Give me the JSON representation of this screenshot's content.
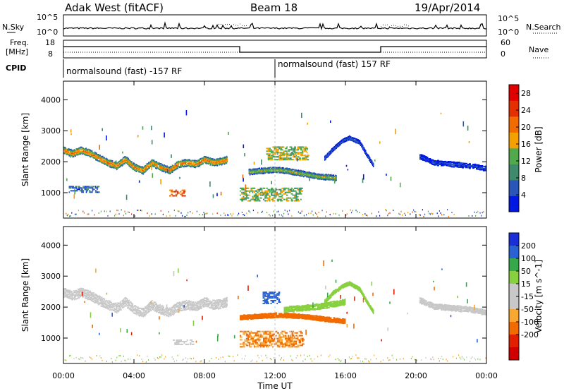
{
  "header": {
    "station": "Adak West (fitACF)",
    "beam": "Beam 18",
    "date": "19/Apr/2014"
  },
  "noise_panel": {
    "left_label": "N.Sky",
    "right_label": "N.Search",
    "left_ticks": [
      "10^5",
      "10^0"
    ],
    "right_ticks": [
      "10^5",
      "10^0"
    ]
  },
  "freq_panel": {
    "left_label_1": "Freq.",
    "left_label_2": "[MHz]",
    "left_ticks": [
      "18",
      "8"
    ],
    "right_label": "Nave",
    "right_ticks": [
      "60",
      "0"
    ],
    "cpid_label": "CPID",
    "cpid_segments": [
      "normalsound (fast) -157 RF",
      "normalsound (fast) 157 RF"
    ]
  },
  "colors": {
    "power_scale": [
      "#0018e0",
      "#2a56b8",
      "#3f8a6c",
      "#52a84c",
      "#f4a000",
      "#f26b00",
      "#e43000",
      "#e00000"
    ],
    "velocity_scale": [
      "#1a2fd8",
      "#2a62d4",
      "#36a84a",
      "#88d040",
      "#c8c8c8",
      "#c8c8c8",
      "#f8a830",
      "#f26b00",
      "#e02000",
      "#d00000"
    ]
  },
  "chart_data": [
    {
      "type": "heatmap",
      "title": "Power",
      "xlabel": "Time UT",
      "ylabel": "Slant Range [km]",
      "colorbar_label": "Power [dB]",
      "x_ticks": [
        "00:00",
        "04:00",
        "08:00",
        "12:00",
        "16:00",
        "20:00",
        "00:00"
      ],
      "y_ticks": [
        1000,
        2000,
        3000,
        4000
      ],
      "xlim_hours": [
        0,
        24
      ],
      "ylim_km": [
        180,
        4600
      ],
      "colorbar_ticks": [
        4,
        8,
        12,
        16,
        20,
        24,
        28
      ],
      "colorbar_range": [
        0,
        30
      ],
      "echo_bands": [
        {
          "t": [
            0.0,
            0.5,
            1.0,
            1.5,
            2.0,
            2.5,
            3.0,
            3.5,
            4.0,
            4.5,
            5.0,
            5.5,
            6.0,
            6.5,
            7.0,
            7.5,
            8.0,
            8.5,
            9.0,
            9.3
          ],
          "r": [
            2350,
            2250,
            2350,
            2250,
            2100,
            1950,
            1850,
            2050,
            1800,
            1700,
            1950,
            1800,
            1700,
            1900,
            1950,
            1900,
            2050,
            1950,
            2000,
            2050
          ],
          "width_km": 230,
          "power_db": 22
        },
        {
          "t": [
            10.5,
            11.0,
            11.5,
            12.0,
            12.5,
            13.0,
            13.5,
            14.0,
            14.5,
            15.0,
            15.5
          ],
          "r": [
            1650,
            1680,
            1700,
            1720,
            1700,
            1650,
            1600,
            1550,
            1500,
            1480,
            1450
          ],
          "width_km": 180,
          "power_db": 16
        },
        {
          "t": [
            14.8,
            15.3,
            15.8,
            16.2,
            16.8,
            17.2,
            17.6
          ],
          "r": [
            2100,
            2400,
            2650,
            2750,
            2600,
            2200,
            1850
          ],
          "width_km": 120,
          "power_db": 6
        },
        {
          "t": [
            20.2,
            21.0,
            22.0,
            23.0,
            24.0
          ],
          "r": [
            2150,
            1950,
            1900,
            1850,
            1750
          ],
          "width_km": 160,
          "power_db": 5
        }
      ],
      "echo_patches": [
        {
          "t": [
            6.0,
            6.8
          ],
          "r": [
            880,
            1080
          ],
          "power_db": 22
        },
        {
          "t": [
            10.0,
            13.5
          ],
          "r": [
            720,
            1150
          ],
          "power_db": 13
        },
        {
          "t": [
            11.5,
            13.8
          ],
          "r": [
            2050,
            2500
          ],
          "power_db": 14
        },
        {
          "t": [
            0.3,
            2.0
          ],
          "r": [
            1000,
            1200
          ],
          "power_db": 6
        }
      ]
    },
    {
      "type": "heatmap",
      "title": "Velocity",
      "xlabel": "Time UT",
      "ylabel": "Slant Range [km]",
      "colorbar_label": "Velocity [m s^-1]",
      "x_ticks": [
        "00:00",
        "04:00",
        "08:00",
        "12:00",
        "16:00",
        "20:00",
        "00:00"
      ],
      "y_ticks": [
        1000,
        2000,
        3000,
        4000
      ],
      "xlim_hours": [
        0,
        24
      ],
      "ylim_km": [
        180,
        4600
      ],
      "colorbar_ticks": [
        200,
        100,
        50,
        15,
        -15,
        -50,
        -100,
        -200
      ],
      "echo_bands": [
        {
          "t": [
            0.0,
            0.5,
            1.0,
            1.5,
            2.0,
            2.5,
            3.0,
            3.5,
            4.0,
            4.5,
            5.0,
            5.5,
            6.0,
            6.5,
            7.0,
            7.5,
            8.0,
            8.5,
            9.0,
            9.3
          ],
          "r": [
            2450,
            2350,
            2450,
            2350,
            2200,
            2050,
            1950,
            2150,
            1900,
            1800,
            2050,
            1900,
            1800,
            2000,
            2050,
            2000,
            2150,
            2050,
            2100,
            2150
          ],
          "width_km": 300,
          "velocity": 0
        },
        {
          "t": [
            10.0,
            11.0,
            12.0,
            13.0,
            14.0,
            15.0,
            16.0
          ],
          "r": [
            1650,
            1680,
            1720,
            1700,
            1650,
            1580,
            1520
          ],
          "width_km": 150,
          "velocity": -90
        },
        {
          "t": [
            12.5,
            13.5,
            14.5,
            15.5,
            16.0
          ],
          "r": [
            1900,
            1950,
            2000,
            2100,
            2150
          ],
          "width_km": 180,
          "velocity": 40
        },
        {
          "t": [
            14.8,
            15.3,
            15.8,
            16.2,
            16.8,
            17.2,
            17.6
          ],
          "r": [
            2150,
            2450,
            2650,
            2750,
            2550,
            2150,
            1800
          ],
          "width_km": 120,
          "velocity": 30
        },
        {
          "t": [
            20.2,
            21.0,
            22.0,
            23.0,
            24.0
          ],
          "r": [
            2200,
            2000,
            1950,
            1900,
            1800
          ],
          "width_km": 180,
          "velocity": 0
        }
      ],
      "echo_patches": [
        {
          "t": [
            10.0,
            13.6
          ],
          "r": [
            700,
            1200
          ],
          "velocity": -50
        },
        {
          "t": [
            6.2,
            7.3
          ],
          "r": [
            780,
            950
          ],
          "velocity": 0
        },
        {
          "t": [
            11.3,
            12.2
          ],
          "r": [
            2100,
            2500
          ],
          "velocity": 150
        }
      ]
    }
  ]
}
